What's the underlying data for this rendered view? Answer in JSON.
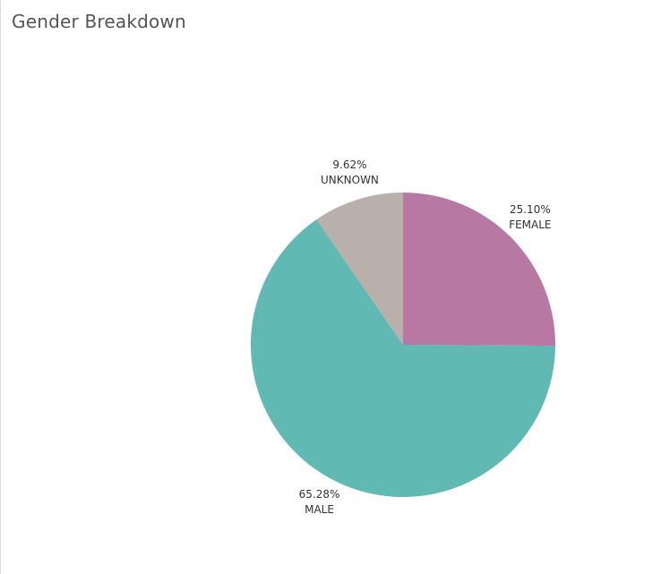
{
  "chart_data": {
    "type": "pie",
    "title": "Gender Breakdown",
    "slices": [
      {
        "label": "FEMALE",
        "value": 25.1,
        "display": "25.10%",
        "color": "#b878a4"
      },
      {
        "label": "MALE",
        "value": 65.28,
        "display": "65.28%",
        "color": "#60b9b3"
      },
      {
        "label": "UNKNOWN",
        "value": 9.62,
        "display": "9.62%",
        "color": "#bab0ab"
      }
    ],
    "start_angle_deg": 0,
    "direction": "clockwise",
    "legend": "none"
  }
}
